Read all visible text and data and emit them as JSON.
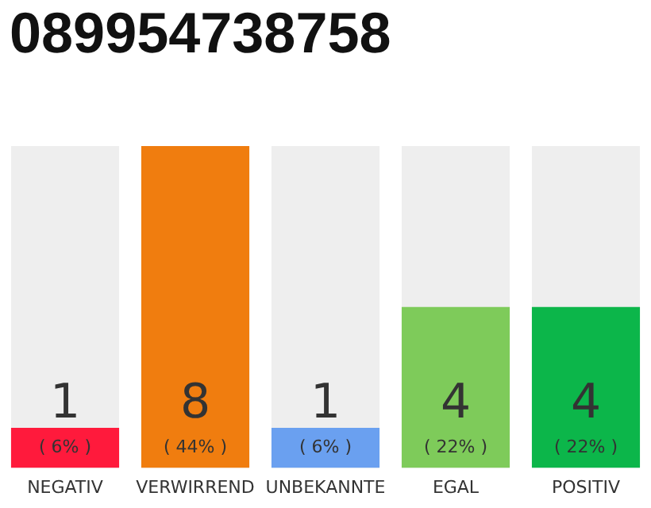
{
  "chart_data": {
    "type": "bar",
    "title": "089954738758",
    "categories": [
      "NEGATIV",
      "VERWIRREND",
      "UNBEKANNTE",
      "EGAL",
      "POSITIV"
    ],
    "values": [
      1,
      8,
      1,
      4,
      4
    ],
    "colors": [
      "#ff1a3c",
      "#f07d0f",
      "#6aa0f0",
      "#7ecb5a",
      "#0cb64a"
    ],
    "data_labels": true,
    "annotations": [
      "( 6% )",
      "( 44% )",
      "( 6% )",
      "( 22% )",
      "( 22% )"
    ],
    "grid": false,
    "legend": false
  }
}
